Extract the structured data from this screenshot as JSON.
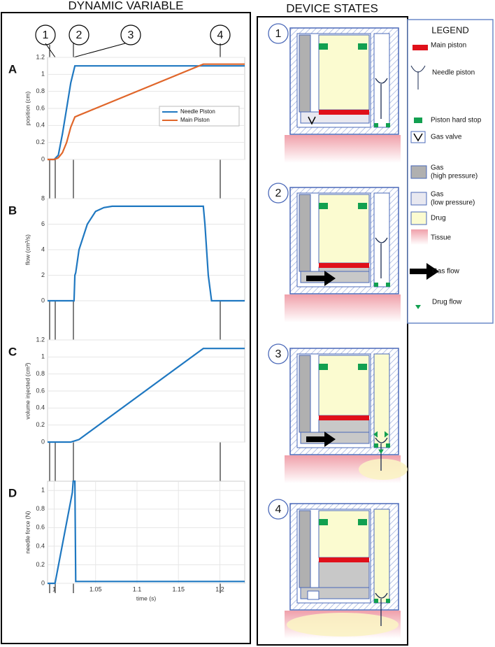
{
  "header": {
    "left_title": "DYNAMIC VARIABLE",
    "right_title": "DEVICE STATES"
  },
  "events": [
    "1",
    "2",
    "3",
    "4"
  ],
  "chart_data": [
    {
      "type": "line",
      "panel": "A",
      "ylabel": "position (cm)",
      "xlim": [
        0.992,
        1.23
      ],
      "ylim": [
        0,
        1.2
      ],
      "yticks": [
        0,
        0.2,
        0.4,
        0.6,
        0.8,
        1,
        1.2
      ],
      "grid": true,
      "legend": "right",
      "series": [
        {
          "name": "Needle Piston",
          "color": "#1f78c1",
          "x": [
            0.992,
            1.0,
            1.005,
            1.01,
            1.015,
            1.02,
            1.025,
            1.23
          ],
          "values": [
            0,
            0,
            0.05,
            0.3,
            0.6,
            0.9,
            1.1,
            1.1
          ]
        },
        {
          "name": "Main Piston",
          "color": "#e0662a",
          "x": [
            0.992,
            1.0,
            1.005,
            1.01,
            1.015,
            1.02,
            1.025,
            1.03,
            1.18,
            1.23
          ],
          "values": [
            0,
            0,
            0.02,
            0.08,
            0.2,
            0.38,
            0.5,
            0.52,
            1.12,
            1.12
          ]
        }
      ]
    },
    {
      "type": "line",
      "panel": "B",
      "ylabel": "flow (cm³/s)",
      "xlim": [
        0.992,
        1.23
      ],
      "ylim": [
        0,
        8
      ],
      "yticks": [
        0,
        2,
        4,
        6,
        8
      ],
      "grid": true,
      "series": [
        {
          "color": "#1f78c1",
          "x": [
            0.992,
            1.024,
            1.025,
            1.026,
            1.03,
            1.04,
            1.05,
            1.06,
            1.07,
            1.18,
            1.182,
            1.186,
            1.19,
            1.23
          ],
          "values": [
            0,
            0,
            2,
            2.2,
            4,
            6,
            7,
            7.3,
            7.4,
            7.4,
            6,
            2,
            0,
            0
          ]
        }
      ]
    },
    {
      "type": "line",
      "panel": "C",
      "ylabel": "volume injected (cm³)",
      "xlim": [
        0.992,
        1.23
      ],
      "ylim": [
        0,
        1.2
      ],
      "yticks": [
        0,
        0.2,
        0.4,
        0.6,
        0.8,
        1,
        1.2
      ],
      "grid": true,
      "series": [
        {
          "color": "#1f78c1",
          "x": [
            0.992,
            1.02,
            1.03,
            1.18,
            1.185,
            1.23
          ],
          "values": [
            0,
            0,
            0.03,
            1.1,
            1.1,
            1.1
          ]
        }
      ]
    },
    {
      "type": "line",
      "panel": "D",
      "ylabel": "needle force (N)",
      "xlabel": "time (s)",
      "xlim": [
        0.992,
        1.23
      ],
      "ylim": [
        0,
        1.1
      ],
      "xticks": [
        1,
        1.05,
        1.1,
        1.15,
        1.2
      ],
      "yticks": [
        0,
        0.2,
        0.4,
        0.6,
        0.8,
        1
      ],
      "grid": true,
      "series": [
        {
          "color": "#1f78c1",
          "x": [
            0.992,
            1.001,
            1.022,
            1.023,
            1.025,
            1.026,
            1.028,
            1.23
          ],
          "values": [
            0,
            0,
            0.98,
            1.1,
            1.1,
            0.02,
            0.02,
            0.02
          ]
        }
      ]
    }
  ],
  "device_states": [
    "1",
    "2",
    "3",
    "4"
  ],
  "legend": {
    "title": "LEGEND",
    "items": [
      {
        "kind": "main-piston",
        "lines": [
          "Main piston"
        ]
      },
      {
        "kind": "needle-piston",
        "lines": [
          "Needle piston"
        ]
      },
      {
        "kind": "hard-stop",
        "lines": [
          "Piston hard stop"
        ]
      },
      {
        "kind": "gas-valve",
        "lines": [
          "Gas valve"
        ]
      },
      {
        "kind": "gas-high",
        "lines": [
          "Gas",
          "(high pressure)"
        ]
      },
      {
        "kind": "gas-low",
        "lines": [
          "Gas",
          "(low pressure)"
        ]
      },
      {
        "kind": "drug",
        "lines": [
          "Drug"
        ]
      },
      {
        "kind": "tissue",
        "lines": [
          "Tissue"
        ]
      },
      {
        "kind": "gas-flow",
        "lines": [
          "Gas flow"
        ]
      },
      {
        "kind": "drug-flow",
        "lines": [
          "Drug flow"
        ]
      }
    ]
  }
}
